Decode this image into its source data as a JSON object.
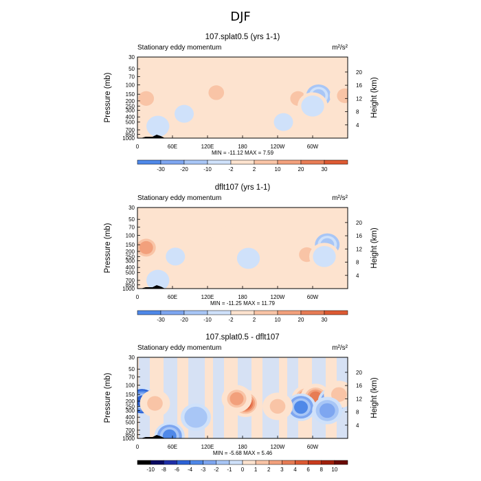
{
  "figure": {
    "title": "DJF"
  },
  "chart_data": [
    {
      "type": "heatmap",
      "title": "107.splat0.5 (yrs 1-1)",
      "subtitle": "Stationary eddy momentum",
      "units": "m²/s²",
      "ylabel": "Pressure (mb)",
      "ylabel_right": "Height (km)",
      "x_ticks": [
        "0",
        "60E",
        "120E",
        "180",
        "120W",
        "60W"
      ],
      "x_tick_values": [
        0,
        60,
        120,
        180,
        240,
        300
      ],
      "xlim": [
        0,
        360
      ],
      "y_scale": "log",
      "y_ticks": [
        "30",
        "50",
        "70",
        "100",
        "150",
        "200",
        "250",
        "300",
        "400",
        "500",
        "700",
        "850",
        "1000"
      ],
      "y_tick_values": [
        30,
        50,
        70,
        100,
        150,
        200,
        250,
        300,
        400,
        500,
        700,
        850,
        1000
      ],
      "ylim": [
        1000,
        30
      ],
      "y_right_ticks": [
        "4",
        "8",
        "12",
        "16",
        "20"
      ],
      "y_right_tick_values": [
        4,
        8,
        12,
        16,
        20
      ],
      "stats": "MIN = -11.12   MAX =   7.59",
      "colorbar": [
        "-30",
        "-20",
        "-10",
        "-2",
        "2",
        "10",
        "20",
        "30"
      ],
      "blobs": [
        {
          "x": 15,
          "p": 180,
          "v": 6
        },
        {
          "x": 135,
          "p": 140,
          "v": 3
        },
        {
          "x": 165,
          "p": 70,
          "v": 2
        },
        {
          "x": 275,
          "p": 180,
          "v": 5
        },
        {
          "x": 310,
          "p": 160,
          "v": -11
        },
        {
          "x": 300,
          "p": 250,
          "v": -6
        },
        {
          "x": 355,
          "p": 160,
          "v": 4
        },
        {
          "x": 35,
          "p": 600,
          "v": -3
        },
        {
          "x": 200,
          "p": 400,
          "v": 2
        },
        {
          "x": 80,
          "p": 350,
          "v": -2
        },
        {
          "x": 250,
          "p": 500,
          "v": -2
        }
      ]
    },
    {
      "type": "heatmap",
      "title": "dflt107 (yrs 1-1)",
      "subtitle": "Stationary eddy momentum",
      "units": "m²/s²",
      "ylabel": "Pressure (mb)",
      "ylabel_right": "Height (km)",
      "x_ticks": [
        "0",
        "60E",
        "120E",
        "180",
        "120W",
        "60W"
      ],
      "x_tick_values": [
        0,
        60,
        120,
        180,
        240,
        300
      ],
      "xlim": [
        0,
        360
      ],
      "y_scale": "log",
      "y_ticks": [
        "30",
        "50",
        "70",
        "100",
        "150",
        "200",
        "250",
        "300",
        "400",
        "500",
        "700",
        "850",
        "1000"
      ],
      "y_tick_values": [
        30,
        50,
        70,
        100,
        150,
        200,
        250,
        300,
        400,
        500,
        700,
        850,
        1000
      ],
      "ylim": [
        1000,
        30
      ],
      "y_right_ticks": [
        "4",
        "8",
        "12",
        "16",
        "20"
      ],
      "y_right_tick_values": [
        4,
        8,
        12,
        16,
        20
      ],
      "stats": "MIN = -11.25   MAX =  11.79",
      "colorbar": [
        "-30",
        "-20",
        "-10",
        "-2",
        "2",
        "10",
        "20",
        "30"
      ],
      "blobs": [
        {
          "x": 15,
          "p": 170,
          "v": 11
        },
        {
          "x": 190,
          "p": 270,
          "v": -4
        },
        {
          "x": 290,
          "p": 230,
          "v": 7
        },
        {
          "x": 325,
          "p": 150,
          "v": -11
        },
        {
          "x": 320,
          "p": 250,
          "v": -4
        },
        {
          "x": 120,
          "p": 150,
          "v": 2
        },
        {
          "x": 65,
          "p": 250,
          "v": -2
        },
        {
          "x": 35,
          "p": 700,
          "v": -3
        },
        {
          "x": 250,
          "p": 400,
          "v": 2
        },
        {
          "x": 155,
          "p": 100,
          "v": 2
        }
      ]
    },
    {
      "type": "heatmap",
      "title": "107.splat0.5 - dflt107",
      "subtitle": "Stationary eddy momentum",
      "units": "m²/s²",
      "ylabel": "Pressure (mb)",
      "ylabel_right": "Height (km)",
      "x_ticks": [
        "0",
        "60E",
        "120E",
        "180",
        "120W",
        "60W"
      ],
      "x_tick_values": [
        0,
        60,
        120,
        180,
        240,
        300
      ],
      "xlim": [
        0,
        360
      ],
      "y_scale": "log",
      "y_ticks": [
        "30",
        "50",
        "70",
        "100",
        "150",
        "200",
        "250",
        "300",
        "400",
        "500",
        "700",
        "850",
        "1000"
      ],
      "y_tick_values": [
        30,
        50,
        70,
        100,
        150,
        200,
        250,
        300,
        400,
        500,
        700,
        850,
        1000
      ],
      "ylim": [
        1000,
        30
      ],
      "y_right_ticks": [
        "4",
        "8",
        "12",
        "16",
        "20"
      ],
      "y_right_tick_values": [
        4,
        8,
        12,
        16,
        20
      ],
      "stats": "MIN =  -5.68   MAX =   5.46",
      "colorbar": [
        "-10",
        "-8",
        "-6",
        "-4",
        "-3",
        "-2",
        "-1",
        "0",
        "1",
        "2",
        "3",
        "4",
        "6",
        "8",
        "10"
      ],
      "blobs": [
        {
          "x": 8,
          "p": 200,
          "v": -5.5
        },
        {
          "x": 30,
          "p": 220,
          "v": 2
        },
        {
          "x": 185,
          "p": 220,
          "v": 5.4
        },
        {
          "x": 170,
          "p": 180,
          "v": 3
        },
        {
          "x": 290,
          "p": 180,
          "v": 5
        },
        {
          "x": 305,
          "p": 170,
          "v": 4
        },
        {
          "x": 280,
          "p": 260,
          "v": -3
        },
        {
          "x": 335,
          "p": 200,
          "v": -3
        },
        {
          "x": 345,
          "p": 150,
          "v": 2
        },
        {
          "x": 55,
          "p": 900,
          "v": -3
        },
        {
          "x": 240,
          "p": 250,
          "v": 2
        },
        {
          "x": 100,
          "p": 400,
          "v": -1.5
        },
        {
          "x": 325,
          "p": 300,
          "v": -2
        }
      ]
    }
  ],
  "colormap": [
    "#0a0a60",
    "#1f2fa8",
    "#2c62d6",
    "#4f88e8",
    "#7ea6f0",
    "#a8c6f6",
    "#cfe1fa",
    "#fde3cf",
    "#f9c4a6",
    "#f2a07c",
    "#e77c55",
    "#dd5a33",
    "#c93b1e",
    "#a0200c",
    "#6a0a04"
  ]
}
